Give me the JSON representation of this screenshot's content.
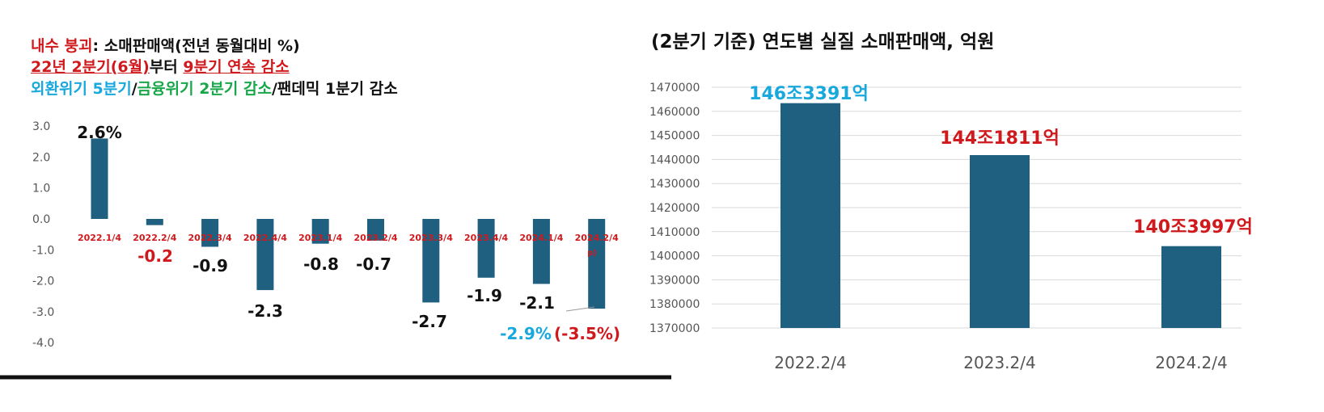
{
  "colors": {
    "red": "#d0191c",
    "cyan": "#19a8dc",
    "green": "#1aa64a",
    "black": "#111111",
    "bar": "#1f5f80",
    "grid": "#d9d9d9"
  },
  "left_header": {
    "line1_red": "내수 붕괴",
    "line1_rest": ": 소매판매액(전년 동월대비 %)",
    "line2_part1": "22년 2분기(6월)",
    "line2_part2": "부터 ",
    "line2_part3": "9분기 연속 감소",
    "line3_part1": "외환위기 5분기",
    "line3_part2": "/",
    "line3_part3": "금융위기 2분기 감소",
    "line3_part4": "/팬데믹 1분기 감소"
  },
  "right_header": {
    "title": "(2분기 기준) 연도별 실질 소매판매액, 억원"
  },
  "chart_data": [
    {
      "type": "bar",
      "categories": [
        "2022.1/4",
        "2022.2/4",
        "2022.3/4",
        "2022.4/4",
        "2023.1/4",
        "2023.2/4",
        "2023.3/4",
        "2023.4/4",
        "2024.1/4",
        "2024.2/4"
      ],
      "values": [
        2.6,
        -0.2,
        -0.9,
        -2.3,
        -0.8,
        -0.7,
        -2.7,
        -1.9,
        -2.1,
        -2.9
      ],
      "data_labels": [
        "2.6%",
        "-0.2",
        "-0.9",
        "-2.3",
        "-0.8",
        "-0.7",
        "-2.7",
        "-1.9",
        "-2.1",
        "-2.9%"
      ],
      "last_category_note": "p)",
      "annotation": "(-3.5%)",
      "yticks": [
        "3.0",
        "2.0",
        "1.0",
        "0.0",
        "-1.0",
        "-2.0",
        "-3.0",
        "-4.0"
      ],
      "ylim": [
        -4.0,
        3.0
      ]
    },
    {
      "type": "bar",
      "categories": [
        "2022.2/4",
        "2023.2/4",
        "2024.2/4"
      ],
      "values": [
        1463391,
        1441811,
        1403997
      ],
      "data_labels": [
        "146조3391억",
        "144조1811억",
        "140조3997억"
      ],
      "yticks": [
        "1470000",
        "1460000",
        "1450000",
        "1440000",
        "1430000",
        "1420000",
        "1410000",
        "1400000",
        "1390000",
        "1380000",
        "1370000"
      ],
      "ylim": [
        1370000,
        1470000
      ]
    }
  ]
}
